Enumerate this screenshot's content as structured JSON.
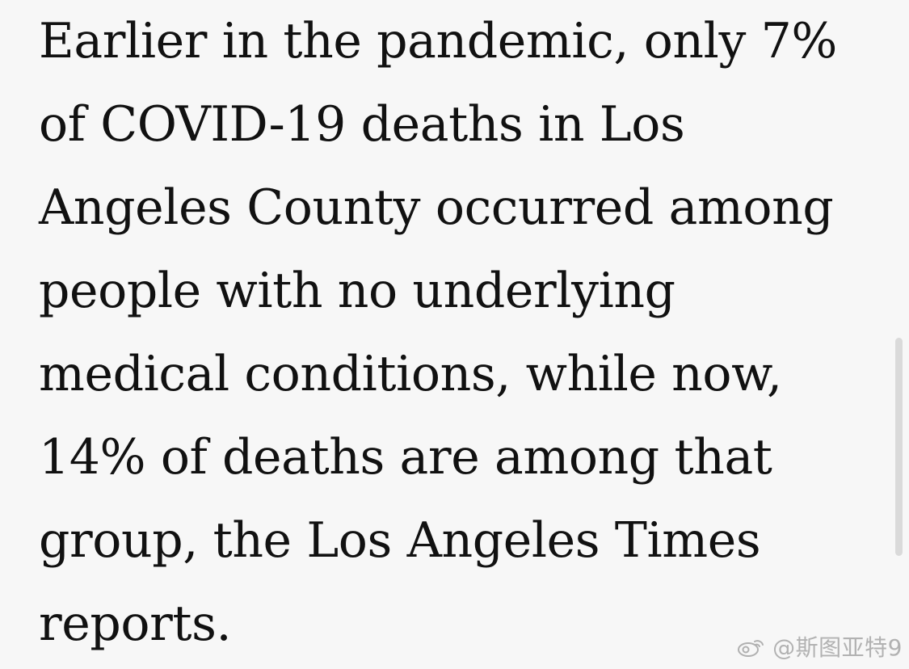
{
  "article": {
    "lines": [
      "Earlier in the pandemic, only 7%",
      "of COVID-19 deaths in Los",
      "Angeles County occurred among",
      "people with no underlying",
      "medical conditions, while now,",
      "14% of deaths are among that",
      "group, the Los Angeles Times",
      "reports."
    ]
  },
  "watermark": {
    "icon": "weibo-icon",
    "text": "@斯图亚特9"
  },
  "colors": {
    "background": "#f7f7f7",
    "text": "#111111",
    "scrollbar": "#d8d8d8",
    "watermark": "#aaaaaa"
  }
}
